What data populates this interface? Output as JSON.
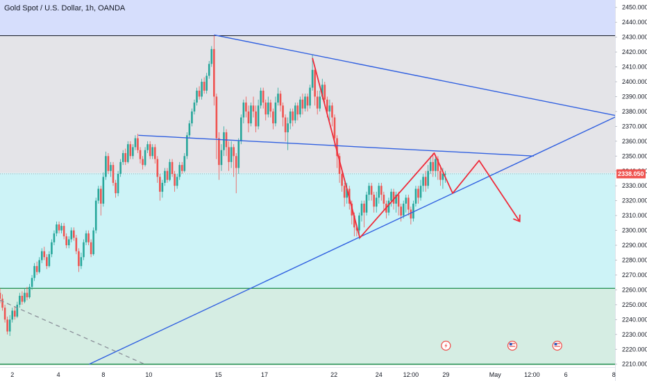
{
  "header": {
    "title": "Gold Spot / U.S. Dollar, 1h, OANDA"
  },
  "colors": {
    "zone_blue": "#d6defc",
    "zone_gray": "#e4e4e8",
    "zone_cyan": "#cdf3f7",
    "zone_green": "#d5ede3",
    "candle_up": "#26a69a",
    "candle_down": "#ef5350",
    "trend_blue": "#2f5fe0",
    "forecast_red": "#ef2b3a",
    "level_green": "#1b8a4a",
    "price_tag_bg": "#ef5350"
  },
  "chart_data": {
    "type": "candlestick",
    "title": "Gold Spot / U.S. Dollar, 1h, OANDA",
    "ylim": [
      2208,
      2455
    ],
    "xlim": [
      0,
      100
    ],
    "y_ticks": [
      "2450.000",
      "2440.000",
      "2430.000",
      "2420.000",
      "2410.000",
      "2400.000",
      "2390.000",
      "2380.000",
      "2370.000",
      "2360.000",
      "2350.000",
      "2340.000",
      "2330.000",
      "2320.000",
      "2310.000",
      "2300.000",
      "2290.000",
      "2280.000",
      "2270.000",
      "2260.000",
      "2250.000",
      "2240.000",
      "2230.000",
      "2220.000",
      "2210.000"
    ],
    "x_ticks": [
      {
        "x": 2,
        "label": "2"
      },
      {
        "x": 9.5,
        "label": "4"
      },
      {
        "x": 16.8,
        "label": "8"
      },
      {
        "x": 24.2,
        "label": "10"
      },
      {
        "x": 35.5,
        "label": "15"
      },
      {
        "x": 43,
        "label": "17"
      },
      {
        "x": 54.3,
        "label": "22"
      },
      {
        "x": 61.6,
        "label": "24"
      },
      {
        "x": 66.8,
        "label": "12:00"
      },
      {
        "x": 72.5,
        "label": "29"
      },
      {
        "x": 80.5,
        "label": "May"
      },
      {
        "x": 86.5,
        "label": "12:00"
      },
      {
        "x": 92,
        "label": "6"
      },
      {
        "x": 99.8,
        "label": "8"
      }
    ],
    "current_price": {
      "label": "2338.050",
      "value": 2338.05
    },
    "zones": [
      {
        "from": 2431,
        "to": 2455,
        "color": "zone_blue"
      },
      {
        "from": 2338.6,
        "to": 2431,
        "color": "zone_gray"
      },
      {
        "from": 2261,
        "to": 2338.6,
        "color": "zone_cyan"
      },
      {
        "from": 2210,
        "to": 2261,
        "color": "zone_green"
      }
    ],
    "horizontal_levels": [
      {
        "y": 2431,
        "color": "#131722",
        "width": 1
      },
      {
        "y": 2261,
        "color": "level_green",
        "width": 1.3
      },
      {
        "y": 2210,
        "color": "level_green",
        "width": 1.5
      }
    ],
    "trendlines": [
      {
        "points": [
          [
            34.8,
            2431.5
          ],
          [
            100.4,
            2377
          ]
        ],
        "color": "trend_blue",
        "width": 1.4
      },
      {
        "points": [
          [
            22.5,
            2364
          ],
          [
            86.8,
            2350
          ]
        ],
        "color": "trend_blue",
        "width": 1.4
      },
      {
        "points": [
          [
            14.5,
            2210
          ],
          [
            100.4,
            2377
          ]
        ],
        "color": "trend_blue",
        "width": 1.4
      }
    ],
    "dashed_lines": [
      {
        "points": [
          [
            0,
            2253
          ],
          [
            23.5,
            2210
          ]
        ],
        "color": "#8a8f99",
        "width": 1.3
      }
    ],
    "forecast_path": {
      "color": "forecast_red",
      "width": 1.8,
      "points": [
        [
          50.8,
          2416
        ],
        [
          58.5,
          2295
        ],
        [
          70.6,
          2352
        ],
        [
          73.6,
          2325
        ],
        [
          77.9,
          2347
        ],
        [
          84.5,
          2306
        ]
      ]
    },
    "events": [
      {
        "x": 72.5,
        "kind": "lightning"
      },
      {
        "x": 83.3,
        "kind": "us-flag"
      },
      {
        "x": 90.6,
        "kind": "us-flag"
      }
    ],
    "candles": [
      [
        0.0,
        2258,
        2254,
        2261,
        2251
      ],
      [
        0.4,
        2254,
        2248,
        2257,
        2246
      ],
      [
        0.8,
        2248,
        2240,
        2250,
        2238
      ],
      [
        1.2,
        2240,
        2232,
        2242,
        2230
      ],
      [
        1.6,
        2232,
        2240,
        2243,
        2229
      ],
      [
        2.0,
        2240,
        2246,
        2248,
        2238
      ],
      [
        2.4,
        2246,
        2242,
        2249,
        2240
      ],
      [
        2.8,
        2242,
        2250,
        2252,
        2241
      ],
      [
        3.2,
        2250,
        2256,
        2258,
        2248
      ],
      [
        3.6,
        2256,
        2252,
        2259,
        2250
      ],
      [
        4.0,
        2252,
        2258,
        2261,
        2251
      ],
      [
        4.4,
        2258,
        2255,
        2262,
        2253
      ],
      [
        4.8,
        2255,
        2262,
        2264,
        2254
      ],
      [
        5.2,
        2262,
        2268,
        2270,
        2260
      ],
      [
        5.6,
        2268,
        2276,
        2278,
        2266
      ],
      [
        6.0,
        2276,
        2272,
        2279,
        2270
      ],
      [
        6.4,
        2272,
        2280,
        2282,
        2271
      ],
      [
        6.8,
        2280,
        2286,
        2288,
        2278
      ],
      [
        7.2,
        2286,
        2282,
        2289,
        2280
      ],
      [
        7.6,
        2282,
        2276,
        2284,
        2274
      ],
      [
        8.0,
        2276,
        2284,
        2286,
        2275
      ],
      [
        8.4,
        2284,
        2292,
        2294,
        2282
      ],
      [
        8.8,
        2292,
        2298,
        2300,
        2290
      ],
      [
        9.2,
        2298,
        2304,
        2306,
        2296
      ],
      [
        9.6,
        2304,
        2300,
        2306,
        2298
      ],
      [
        10.0,
        2300,
        2303,
        2305,
        2298
      ],
      [
        10.4,
        2303,
        2296,
        2305,
        2294
      ],
      [
        10.8,
        2296,
        2290,
        2298,
        2288
      ],
      [
        11.2,
        2290,
        2294,
        2296,
        2288
      ],
      [
        11.6,
        2294,
        2300,
        2302,
        2292
      ],
      [
        12.0,
        2300,
        2295,
        2302,
        2293
      ],
      [
        12.4,
        2295,
        2286,
        2297,
        2284
      ],
      [
        12.8,
        2286,
        2276,
        2288,
        2272
      ],
      [
        13.2,
        2276,
        2282,
        2285,
        2274
      ],
      [
        13.6,
        2282,
        2292,
        2294,
        2280
      ],
      [
        14.0,
        2292,
        2298,
        2300,
        2290
      ],
      [
        14.4,
        2298,
        2292,
        2300,
        2290
      ],
      [
        14.8,
        2292,
        2284,
        2294,
        2282
      ],
      [
        15.2,
        2284,
        2300,
        2302,
        2283
      ],
      [
        15.6,
        2300,
        2320,
        2322,
        2298
      ],
      [
        16.0,
        2320,
        2328,
        2330,
        2318
      ],
      [
        16.4,
        2328,
        2318,
        2330,
        2310
      ],
      [
        16.8,
        2318,
        2336,
        2339,
        2316
      ],
      [
        17.2,
        2336,
        2350,
        2353,
        2334
      ],
      [
        17.6,
        2350,
        2340,
        2352,
        2338
      ],
      [
        18.0,
        2340,
        2344,
        2346,
        2336
      ],
      [
        18.4,
        2344,
        2332,
        2346,
        2330
      ],
      [
        18.8,
        2332,
        2325,
        2334,
        2322
      ],
      [
        19.2,
        2325,
        2338,
        2340,
        2323
      ],
      [
        19.6,
        2338,
        2346,
        2348,
        2336
      ],
      [
        20.0,
        2346,
        2352,
        2354,
        2344
      ],
      [
        20.4,
        2352,
        2346,
        2355,
        2344
      ],
      [
        20.8,
        2346,
        2358,
        2360,
        2345
      ],
      [
        21.2,
        2358,
        2350,
        2360,
        2348
      ],
      [
        21.6,
        2350,
        2356,
        2358,
        2348
      ],
      [
        22.0,
        2356,
        2362,
        2364,
        2354
      ],
      [
        22.4,
        2362,
        2354,
        2365,
        2352
      ],
      [
        22.8,
        2354,
        2348,
        2356,
        2345
      ],
      [
        23.2,
        2348,
        2344,
        2350,
        2341
      ],
      [
        23.6,
        2344,
        2354,
        2356,
        2343
      ],
      [
        24.0,
        2354,
        2358,
        2360,
        2352
      ],
      [
        24.4,
        2358,
        2350,
        2360,
        2348
      ],
      [
        24.8,
        2350,
        2356,
        2358,
        2348
      ],
      [
        25.2,
        2356,
        2348,
        2358,
        2345
      ],
      [
        25.6,
        2348,
        2336,
        2350,
        2332
      ],
      [
        26.0,
        2336,
        2326,
        2338,
        2320
      ],
      [
        26.4,
        2326,
        2332,
        2334,
        2322
      ],
      [
        26.8,
        2332,
        2340,
        2342,
        2330
      ],
      [
        27.2,
        2340,
        2334,
        2342,
        2332
      ],
      [
        27.6,
        2334,
        2346,
        2348,
        2333
      ],
      [
        28.0,
        2346,
        2338,
        2348,
        2336
      ],
      [
        28.4,
        2338,
        2330,
        2340,
        2326
      ],
      [
        28.8,
        2330,
        2336,
        2338,
        2328
      ],
      [
        29.2,
        2336,
        2344,
        2346,
        2334
      ],
      [
        29.6,
        2344,
        2340,
        2346,
        2338
      ],
      [
        30.0,
        2340,
        2350,
        2352,
        2339
      ],
      [
        30.4,
        2350,
        2364,
        2366,
        2348
      ],
      [
        30.8,
        2364,
        2372,
        2374,
        2362
      ],
      [
        31.2,
        2372,
        2380,
        2382,
        2370
      ],
      [
        31.6,
        2380,
        2386,
        2388,
        2378
      ],
      [
        32.0,
        2386,
        2394,
        2396,
        2384
      ],
      [
        32.4,
        2394,
        2390,
        2397,
        2388
      ],
      [
        32.8,
        2390,
        2400,
        2402,
        2388
      ],
      [
        33.2,
        2400,
        2394,
        2403,
        2392
      ],
      [
        33.6,
        2394,
        2404,
        2406,
        2392
      ],
      [
        34.0,
        2404,
        2412,
        2414,
        2402
      ],
      [
        34.4,
        2412,
        2422,
        2424,
        2410
      ],
      [
        34.8,
        2422,
        2390,
        2431,
        2384
      ],
      [
        35.2,
        2390,
        2362,
        2392,
        2348
      ],
      [
        35.6,
        2362,
        2344,
        2366,
        2334
      ],
      [
        36.0,
        2344,
        2354,
        2358,
        2340
      ],
      [
        36.4,
        2354,
        2366,
        2370,
        2350
      ],
      [
        36.8,
        2366,
        2356,
        2368,
        2350
      ],
      [
        37.2,
        2356,
        2346,
        2360,
        2340
      ],
      [
        37.6,
        2346,
        2356,
        2360,
        2342
      ],
      [
        38.0,
        2356,
        2350,
        2358,
        2336
      ],
      [
        38.4,
        2350,
        2342,
        2352,
        2325
      ],
      [
        38.8,
        2342,
        2360,
        2362,
        2338
      ],
      [
        39.2,
        2360,
        2376,
        2378,
        2358
      ],
      [
        39.6,
        2376,
        2386,
        2388,
        2372
      ],
      [
        40.0,
        2386,
        2380,
        2390,
        2376
      ],
      [
        40.4,
        2380,
        2372,
        2384,
        2366
      ],
      [
        40.8,
        2372,
        2384,
        2386,
        2370
      ],
      [
        41.2,
        2384,
        2380,
        2390,
        2376
      ],
      [
        41.6,
        2380,
        2370,
        2384,
        2366
      ],
      [
        42.0,
        2370,
        2384,
        2388,
        2368
      ],
      [
        42.4,
        2384,
        2394,
        2396,
        2382
      ],
      [
        42.8,
        2394,
        2386,
        2396,
        2382
      ],
      [
        43.2,
        2386,
        2378,
        2388,
        2374
      ],
      [
        43.6,
        2378,
        2386,
        2390,
        2376
      ],
      [
        44.0,
        2386,
        2380,
        2388,
        2376
      ],
      [
        44.4,
        2380,
        2372,
        2382,
        2368
      ],
      [
        44.8,
        2372,
        2386,
        2390,
        2370
      ],
      [
        45.2,
        2386,
        2392,
        2396,
        2384
      ],
      [
        45.6,
        2392,
        2384,
        2394,
        2380
      ],
      [
        46.0,
        2384,
        2376,
        2386,
        2370
      ],
      [
        46.4,
        2376,
        2366,
        2378,
        2360
      ],
      [
        46.8,
        2366,
        2372,
        2376,
        2354
      ],
      [
        47.2,
        2372,
        2380,
        2382,
        2368
      ],
      [
        47.6,
        2380,
        2374,
        2382,
        2370
      ],
      [
        48.0,
        2374,
        2384,
        2386,
        2372
      ],
      [
        48.4,
        2384,
        2378,
        2386,
        2374
      ],
      [
        48.8,
        2378,
        2388,
        2390,
        2376
      ],
      [
        49.2,
        2388,
        2382,
        2392,
        2378
      ],
      [
        49.6,
        2382,
        2390,
        2392,
        2380
      ],
      [
        50.0,
        2390,
        2384,
        2392,
        2380
      ],
      [
        50.4,
        2384,
        2396,
        2398,
        2382
      ],
      [
        50.8,
        2396,
        2408,
        2418,
        2394
      ],
      [
        51.2,
        2408,
        2390,
        2410,
        2384
      ],
      [
        51.6,
        2390,
        2382,
        2394,
        2378
      ],
      [
        52.0,
        2382,
        2390,
        2394,
        2380
      ],
      [
        52.4,
        2390,
        2398,
        2402,
        2388
      ],
      [
        52.8,
        2398,
        2388,
        2400,
        2384
      ],
      [
        53.2,
        2388,
        2380,
        2390,
        2376
      ],
      [
        53.6,
        2380,
        2384,
        2388,
        2374
      ],
      [
        54.0,
        2384,
        2376,
        2386,
        2370
      ],
      [
        54.4,
        2376,
        2362,
        2378,
        2356
      ],
      [
        54.8,
        2362,
        2350,
        2364,
        2342
      ],
      [
        55.2,
        2350,
        2338,
        2352,
        2332
      ],
      [
        55.6,
        2338,
        2330,
        2340,
        2326
      ],
      [
        56.0,
        2330,
        2322,
        2332,
        2316
      ],
      [
        56.4,
        2322,
        2328,
        2332,
        2318
      ],
      [
        56.8,
        2328,
        2318,
        2330,
        2314
      ],
      [
        57.2,
        2318,
        2310,
        2320,
        2304
      ],
      [
        57.6,
        2310,
        2302,
        2312,
        2296
      ],
      [
        58.0,
        2302,
        2300,
        2304,
        2296
      ],
      [
        58.4,
        2300,
        2310,
        2312,
        2294
      ],
      [
        58.8,
        2310,
        2318,
        2320,
        2306
      ],
      [
        59.2,
        2318,
        2312,
        2320,
        2302
      ],
      [
        59.6,
        2312,
        2324,
        2326,
        2310
      ],
      [
        60.0,
        2324,
        2330,
        2332,
        2320
      ],
      [
        60.4,
        2330,
        2324,
        2332,
        2320
      ],
      [
        60.8,
        2324,
        2316,
        2326,
        2312
      ],
      [
        61.2,
        2316,
        2322,
        2326,
        2312
      ],
      [
        61.6,
        2322,
        2330,
        2332,
        2318
      ],
      [
        62.0,
        2330,
        2324,
        2332,
        2320
      ],
      [
        62.4,
        2324,
        2318,
        2326,
        2314
      ],
      [
        62.8,
        2318,
        2312,
        2320,
        2308
      ],
      [
        63.2,
        2312,
        2320,
        2322,
        2310
      ],
      [
        63.6,
        2320,
        2326,
        2328,
        2316
      ],
      [
        64.0,
        2326,
        2318,
        2328,
        2314
      ],
      [
        64.4,
        2318,
        2324,
        2326,
        2312
      ],
      [
        64.8,
        2324,
        2316,
        2326,
        2310
      ],
      [
        65.2,
        2316,
        2310,
        2318,
        2306
      ],
      [
        65.6,
        2310,
        2318,
        2320,
        2308
      ],
      [
        66.0,
        2318,
        2322,
        2324,
        2312
      ],
      [
        66.4,
        2322,
        2314,
        2324,
        2310
      ],
      [
        66.8,
        2314,
        2308,
        2316,
        2304
      ],
      [
        67.2,
        2308,
        2318,
        2320,
        2306
      ],
      [
        67.6,
        2318,
        2328,
        2330,
        2316
      ],
      [
        68.0,
        2328,
        2322,
        2330,
        2318
      ],
      [
        68.4,
        2322,
        2330,
        2334,
        2320
      ],
      [
        68.8,
        2330,
        2336,
        2338,
        2326
      ],
      [
        69.2,
        2336,
        2330,
        2340,
        2326
      ],
      [
        69.6,
        2330,
        2340,
        2344,
        2328
      ],
      [
        70.0,
        2340,
        2346,
        2350,
        2338
      ],
      [
        70.4,
        2346,
        2340,
        2352,
        2336
      ],
      [
        70.8,
        2340,
        2348,
        2350,
        2336
      ],
      [
        71.2,
        2348,
        2340,
        2350,
        2334
      ],
      [
        71.6,
        2340,
        2334,
        2344,
        2330
      ],
      [
        72.0,
        2334,
        2338,
        2342,
        2328
      ],
      [
        72.4,
        2338,
        2338.05,
        2340,
        2332
      ]
    ]
  }
}
